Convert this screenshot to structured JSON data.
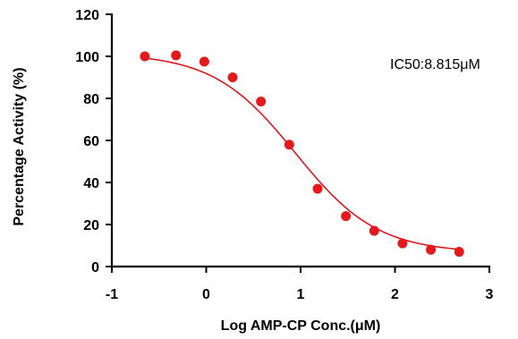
{
  "chart_data": {
    "type": "scatter",
    "title": "",
    "xlabel": "Log AMP-CP Conc.(μM)",
    "ylabel": "Percentage Activity (%)",
    "xlim": [
      -1,
      3
    ],
    "ylim": [
      0,
      120
    ],
    "x_ticks": [
      "-1",
      "0",
      "1",
      "2",
      "3"
    ],
    "y_ticks": [
      "0",
      "20",
      "40",
      "60",
      "80",
      "100",
      "120"
    ],
    "grid": false,
    "legend": "none",
    "series": [
      {
        "x": [
          -0.65,
          -0.32,
          -0.02,
          0.28,
          0.58,
          0.88,
          1.18,
          1.48,
          1.78,
          2.08,
          2.38,
          2.68
        ],
        "y": [
          100,
          100.5,
          97.5,
          90,
          78.5,
          58,
          37,
          24,
          17,
          11,
          8,
          7
        ],
        "color": "#e31a1c"
      }
    ],
    "fit": {
      "type": "four-parameter-logistic",
      "color": "#d7191c",
      "logIC50": 0.945,
      "top": 101.5,
      "bottom": 6.5,
      "hill_slope": 1.0
    },
    "annotations": [
      {
        "text": "IC50:8.815μM",
        "position": "top-right"
      }
    ]
  }
}
